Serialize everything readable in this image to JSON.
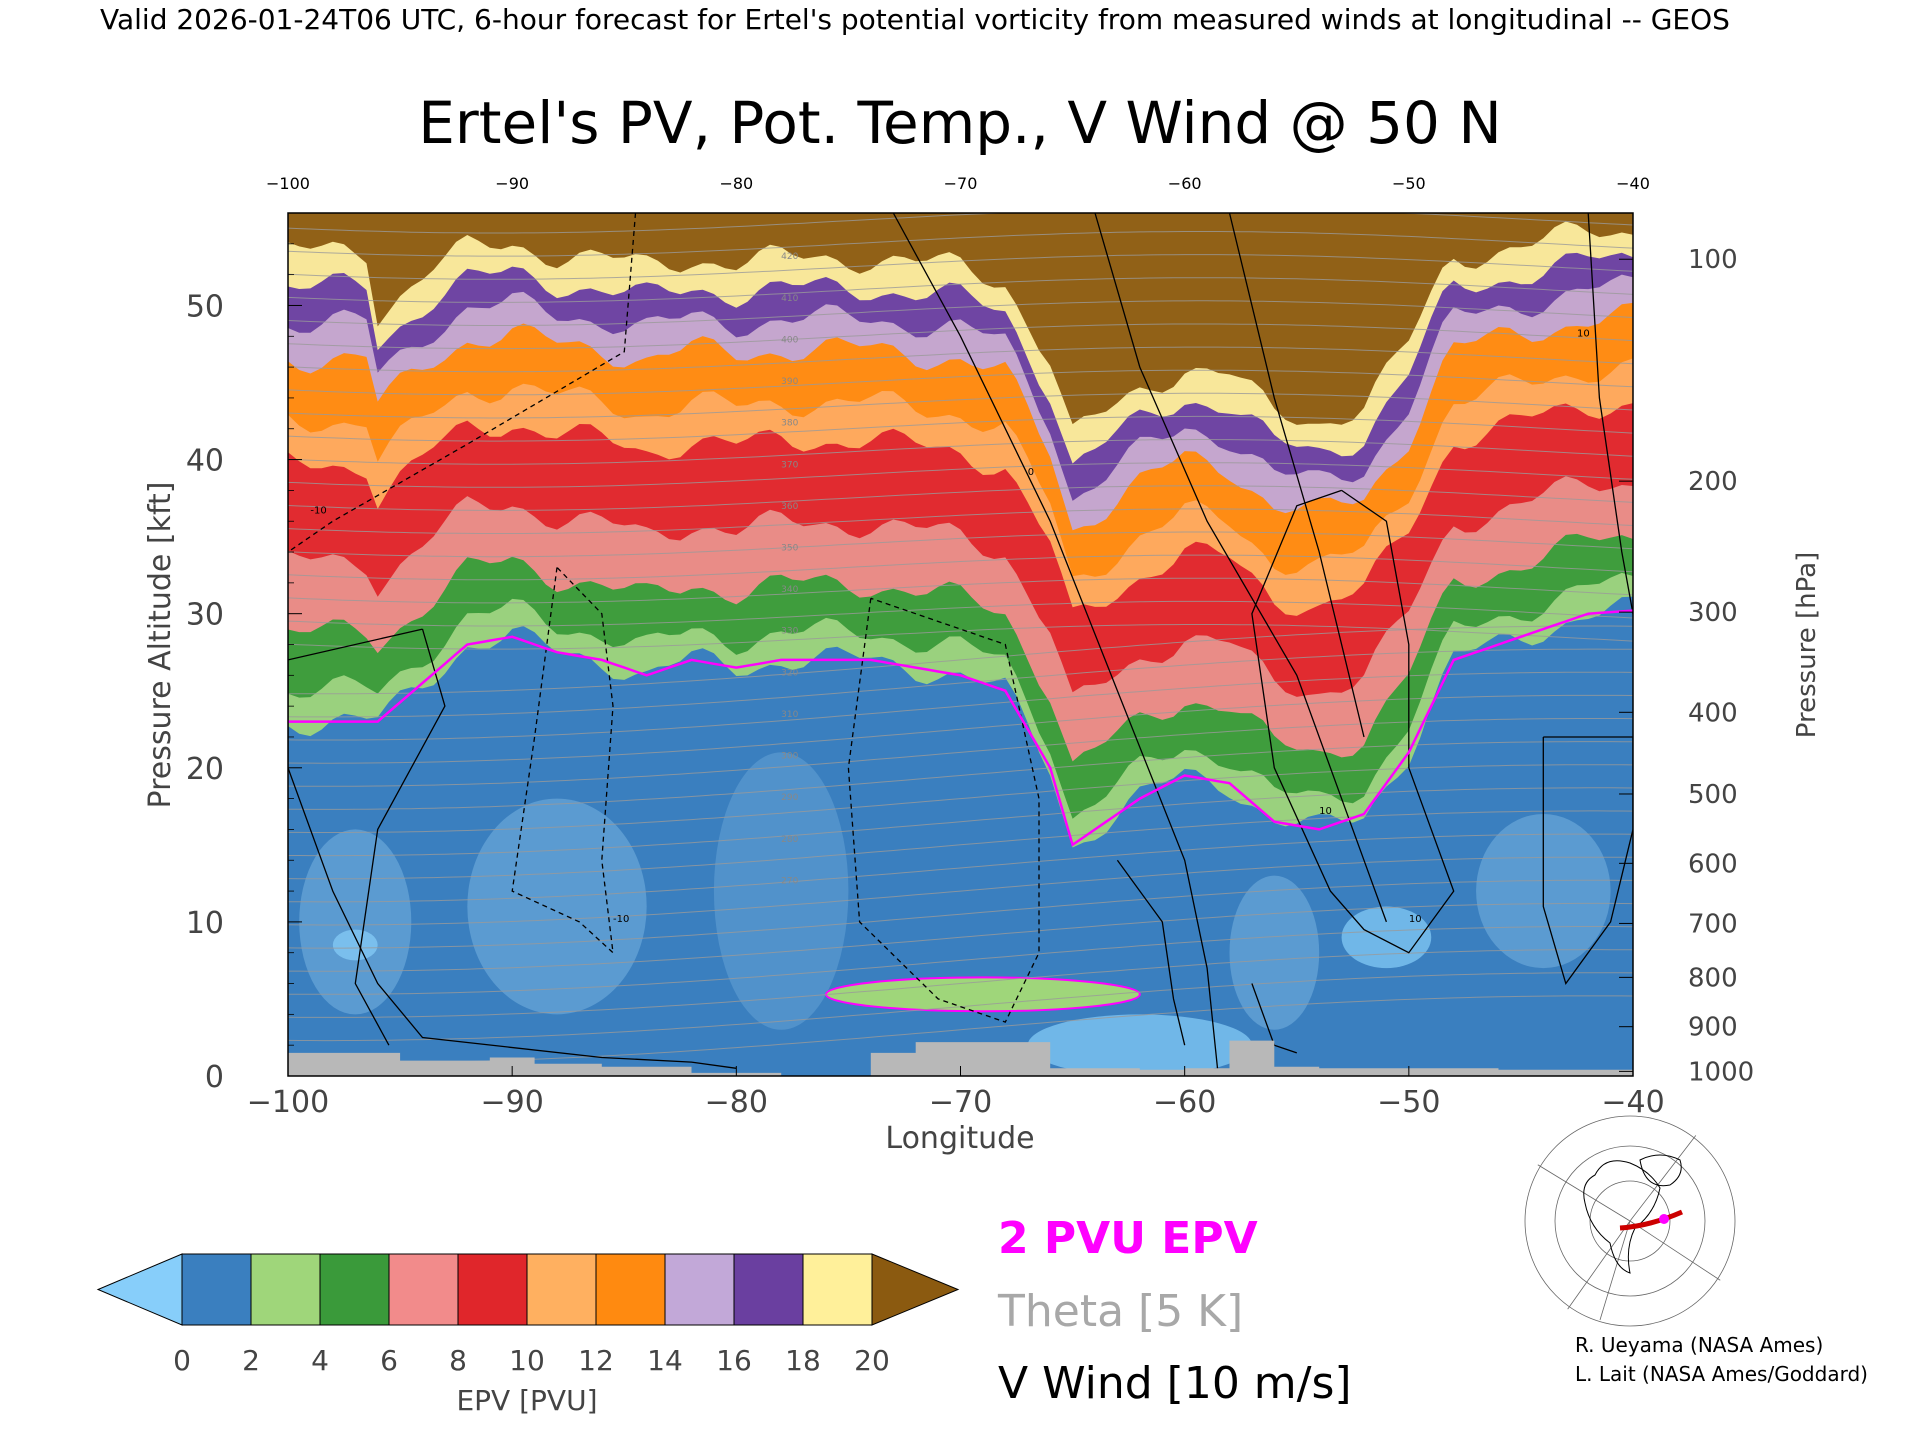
{
  "header": {
    "valid_line": "Valid 2026-01-24T06 UTC, 6-hour forecast for Ertel's potential vorticity from measured winds at longitudinal -- GEOS"
  },
  "chart_data": {
    "type": "heatmap",
    "title": "Ertel's PV, Pot. Temp., V Wind @ 50 N",
    "xlabel": "Longitude",
    "ylabel_left": "Pressure Altitude [kft]",
    "ylabel_right": "Pressure [hPa]",
    "xlim": [
      -100,
      -40
    ],
    "ylim_kft": [
      0,
      56
    ],
    "x_ticks": [
      -100,
      -90,
      -80,
      -70,
      -60,
      -50,
      -40
    ],
    "x_tick_labels": [
      "−100",
      "−90",
      "−80",
      "−70",
      "−60",
      "−50",
      "−40"
    ],
    "y_ticks_kft": [
      0,
      10,
      20,
      30,
      40,
      50
    ],
    "y_ticks_hpa": [
      {
        "label": "100",
        "kft": 53.0
      },
      {
        "label": "200",
        "kft": 38.6
      },
      {
        "label": "300",
        "kft": 30.1
      },
      {
        "label": "400",
        "kft": 23.6
      },
      {
        "label": "500",
        "kft": 18.3
      },
      {
        "label": "600",
        "kft": 13.8
      },
      {
        "label": "700",
        "kft": 9.9
      },
      {
        "label": "800",
        "kft": 6.4
      },
      {
        "label": "900",
        "kft": 3.2
      },
      {
        "label": "1000",
        "kft": 0.3
      }
    ],
    "colorbar": {
      "label": "EPV [PVU]",
      "ticks": [
        "0",
        "2",
        "4",
        "6",
        "8",
        "10",
        "12",
        "14",
        "16",
        "18",
        "20"
      ],
      "min": 0,
      "max": 20,
      "step": 2,
      "colors": [
        "#3a7fbf",
        "#9fd67a",
        "#3a9a3a",
        "#f28b8b",
        "#e0262b",
        "#ffb060",
        "#ff8a10",
        "#c2a8d8",
        "#6a3fa0",
        "#fff09a"
      ],
      "under_color": "#87cefa",
      "over_color": "#8b5a10"
    },
    "tropopause_pvu2": {
      "lon": [
        -100,
        -98,
        -96,
        -94,
        -92,
        -90,
        -88,
        -86,
        -84,
        -82,
        -80,
        -78,
        -76,
        -74,
        -72,
        -70,
        -68,
        -66,
        -65,
        -64,
        -62,
        -60,
        -58,
        -56,
        -54,
        -52,
        -50,
        -48,
        -46,
        -44,
        -42,
        -40
      ],
      "kft": [
        23,
        23,
        23,
        25.5,
        28,
        28.5,
        27.5,
        27,
        26,
        27,
        26.5,
        27,
        27,
        27,
        26.5,
        26,
        25,
        20,
        15,
        16,
        18,
        19.5,
        19,
        16.5,
        16,
        17,
        21,
        27,
        28,
        29,
        30,
        30.2
      ]
    },
    "surface_kft": {
      "lon": [
        -100,
        -95,
        -91,
        -89,
        -86,
        -82,
        -78,
        -76,
        -74,
        -72,
        -69,
        -67,
        -66,
        -62,
        -60,
        -58,
        -56,
        -54,
        -50,
        -46,
        -40
      ],
      "kft": [
        1.5,
        1.0,
        1.2,
        0.8,
        0.6,
        0.2,
        0,
        0,
        1.5,
        2.2,
        2.2,
        2.2,
        0.5,
        0.4,
        0.5,
        2.3,
        0.6,
        0.5,
        0.5,
        0.4,
        0.5
      ]
    },
    "theta_labels": [
      "420",
      "410",
      "400",
      "390",
      "380",
      "370",
      "360",
      "350",
      "340",
      "330",
      "320",
      "310",
      "300",
      "290",
      "280",
      "270"
    ],
    "vwind_contour_labels": [
      "-10",
      "0",
      "10",
      "10",
      "-10",
      "10"
    ],
    "legend": {
      "epv_2pvu": "2 PVU EPV",
      "theta": "Theta [5 K]",
      "vwind": "V Wind [10 m/s]",
      "colors": {
        "epv": "#ff00ff",
        "theta": "#a0a0a0",
        "vwind": "#000000"
      }
    },
    "inset_map": {
      "marker_lon": -55,
      "marker_lat": 50,
      "track_color": "#cc0000"
    }
  },
  "credits": {
    "line1": "R. Ueyama (NASA Ames)",
    "line2": "L. Lait (NASA Ames/Goddard)"
  }
}
